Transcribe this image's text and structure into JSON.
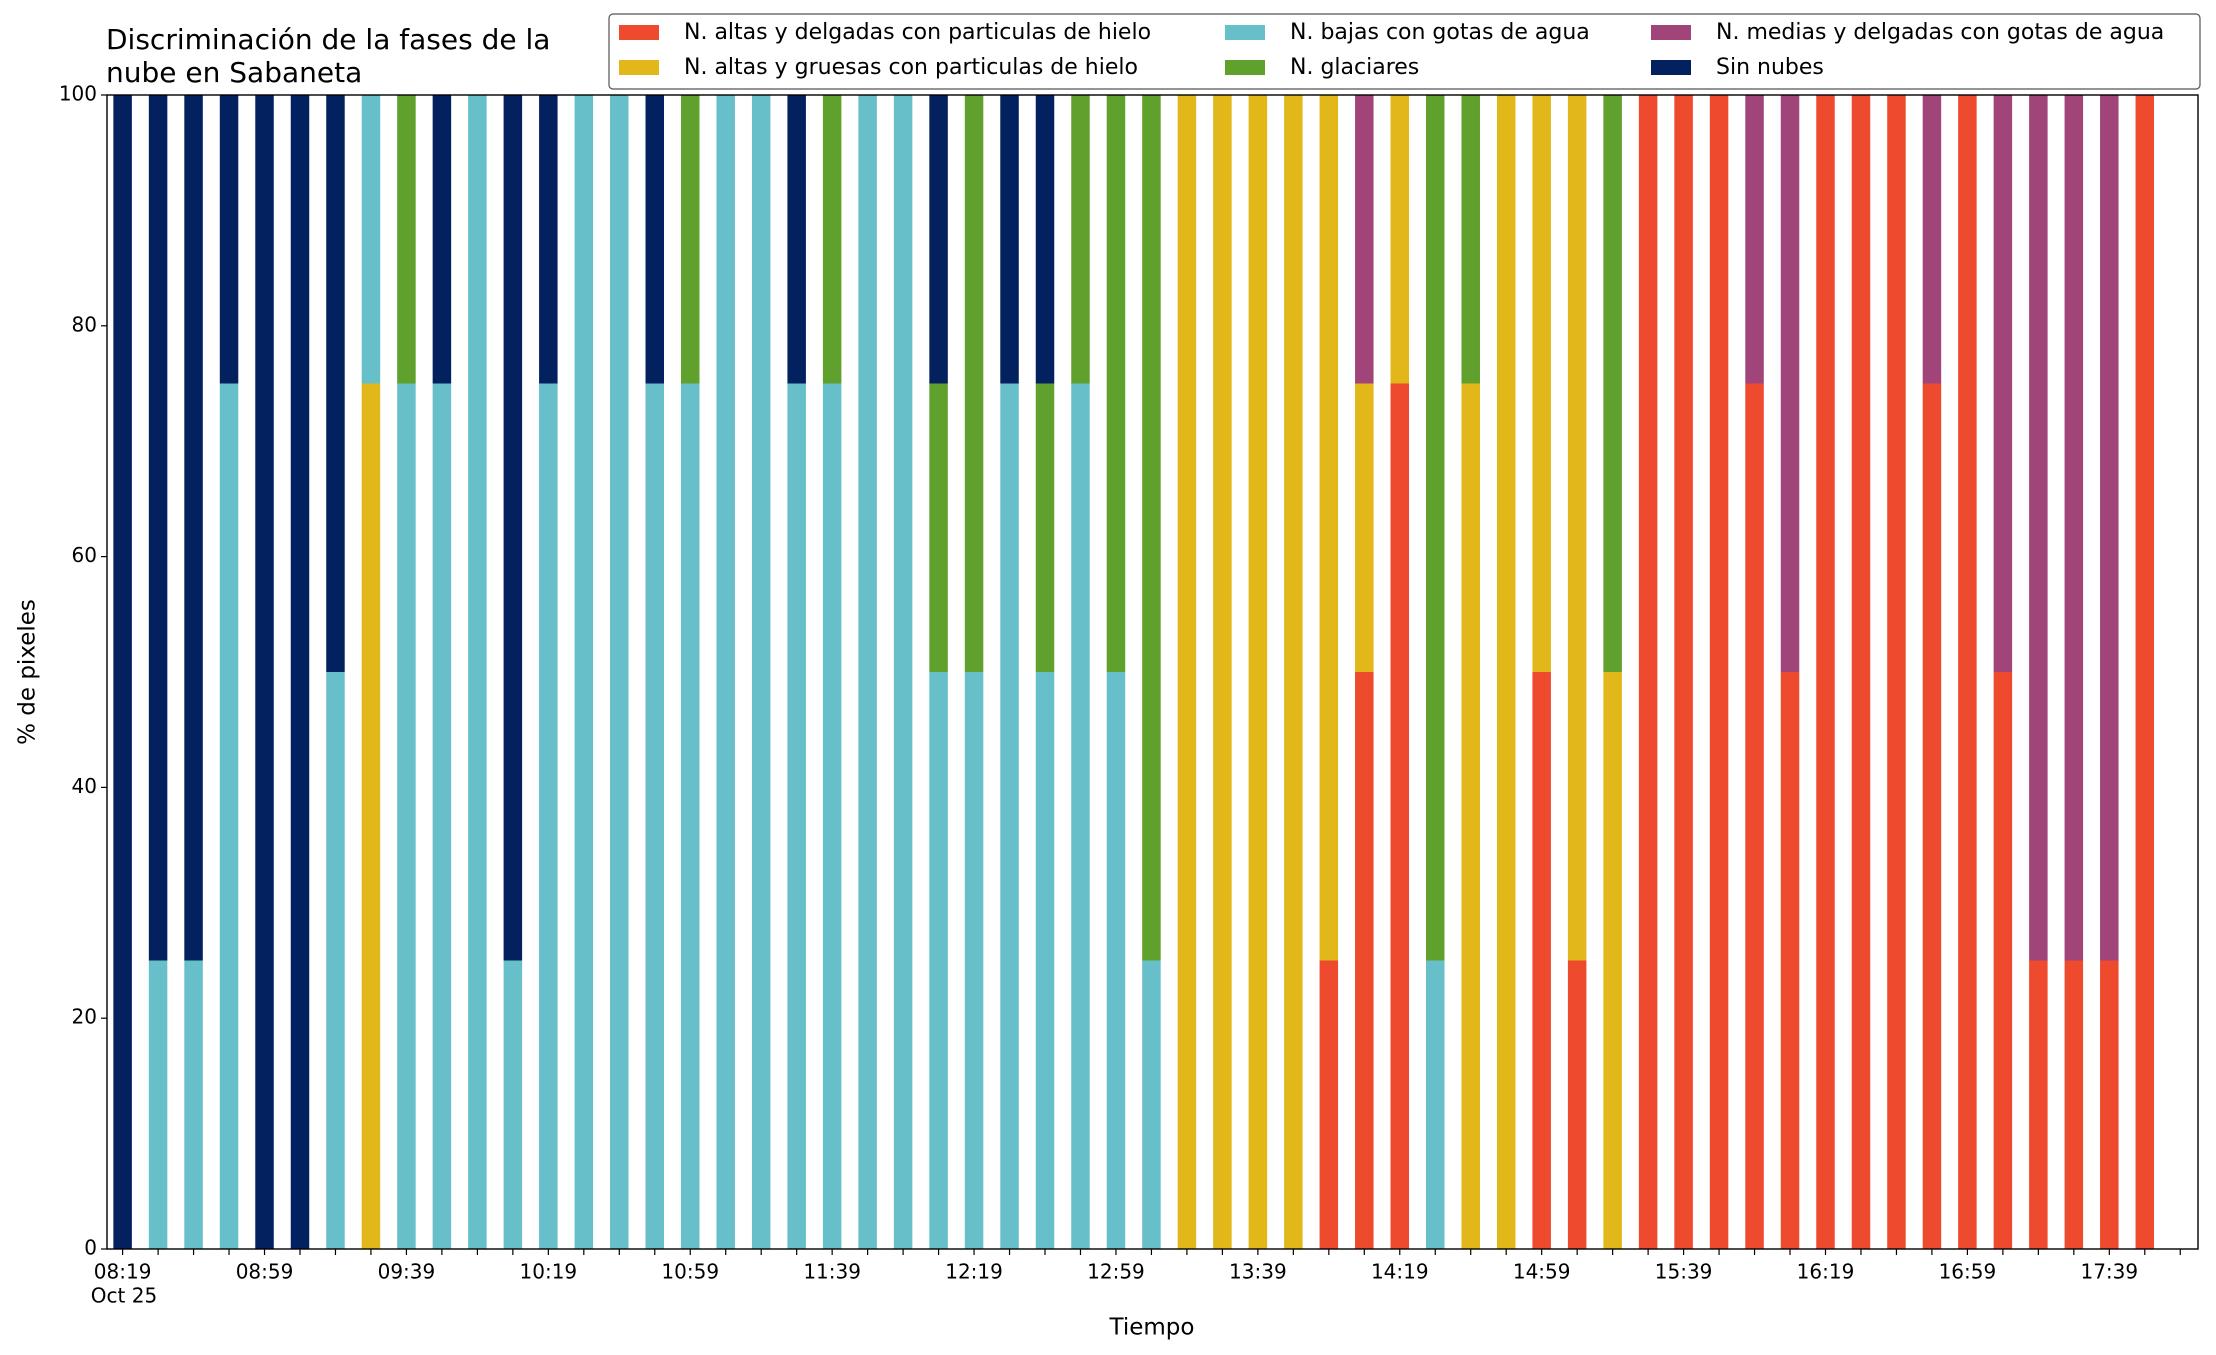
{
  "chart_data": {
    "type": "stacked_bar",
    "title": [
      "Discriminación de la fases de la",
      "nube en Sabaneta"
    ],
    "x_label": "Tiempo",
    "y_label": "% de pixeles",
    "x_date_label": "Oct 25",
    "categories": [
      "08:19",
      null,
      null,
      null,
      "08:59",
      null,
      null,
      null,
      "09:39",
      null,
      null,
      null,
      "10:19",
      null,
      null,
      null,
      "10:59",
      null,
      null,
      null,
      "11:39",
      null,
      null,
      null,
      "12:19",
      null,
      null,
      null,
      "12:59",
      null,
      null,
      null,
      "13:39",
      null,
      null,
      null,
      "14:19",
      null,
      null,
      null,
      "14:59",
      null,
      null,
      null,
      "15:39",
      null,
      null,
      null,
      "16:19",
      null,
      null,
      null,
      "16:59",
      null,
      null,
      null,
      "17:39",
      null
    ],
    "ylim": [
      0,
      100
    ],
    "yticks": [
      0,
      20,
      40,
      60,
      80,
      100
    ],
    "legend": "upper right",
    "series": [
      {
        "name": "N. altas y delgadas con particulas de hielo",
        "color": "#ee4a2d",
        "values": [
          0,
          0,
          0,
          0,
          0,
          0,
          0,
          0,
          0,
          0,
          0,
          0,
          0,
          0,
          0,
          0,
          0,
          0,
          0,
          0,
          0,
          0,
          0,
          0,
          0,
          0,
          0,
          0,
          0,
          0,
          0,
          0,
          0,
          0,
          25,
          50,
          75,
          0,
          0,
          0,
          50,
          25,
          0,
          100,
          100,
          100,
          75,
          50,
          100,
          100,
          100,
          75,
          100,
          50,
          25,
          25,
          25,
          100
        ]
      },
      {
        "name": "N. altas y gruesas con particulas de hielo",
        "color": "#e2b719",
        "values": [
          0,
          0,
          0,
          0,
          0,
          0,
          0,
          75,
          0,
          0,
          0,
          0,
          0,
          0,
          0,
          0,
          0,
          0,
          0,
          0,
          0,
          0,
          0,
          0,
          0,
          0,
          0,
          0,
          0,
          0,
          100,
          100,
          100,
          100,
          75,
          25,
          25,
          0,
          75,
          100,
          50,
          75,
          50,
          0,
          0,
          0,
          0,
          0,
          0,
          0,
          0,
          0,
          0,
          0,
          0,
          0,
          0,
          0
        ]
      },
      {
        "name": "N. bajas con gotas de agua",
        "color": "#67bfca",
        "values": [
          0,
          25,
          25,
          75,
          0,
          0,
          50,
          25,
          75,
          75,
          100,
          25,
          75,
          100,
          100,
          75,
          75,
          100,
          100,
          75,
          75,
          100,
          100,
          50,
          50,
          75,
          50,
          75,
          50,
          25,
          0,
          0,
          0,
          0,
          0,
          0,
          0,
          25,
          0,
          0,
          0,
          0,
          0,
          0,
          0,
          0,
          0,
          0,
          0,
          0,
          0,
          0,
          0,
          0,
          0,
          0,
          0,
          0
        ]
      },
      {
        "name": "N. glaciares",
        "color": "#5fa12c",
        "values": [
          0,
          0,
          0,
          0,
          0,
          0,
          0,
          0,
          25,
          0,
          0,
          0,
          0,
          0,
          0,
          0,
          25,
          0,
          0,
          0,
          25,
          0,
          0,
          25,
          50,
          0,
          25,
          25,
          50,
          75,
          0,
          0,
          0,
          0,
          0,
          0,
          0,
          75,
          25,
          0,
          0,
          0,
          50,
          0,
          0,
          0,
          0,
          0,
          0,
          0,
          0,
          0,
          0,
          0,
          0,
          0,
          0,
          0
        ]
      },
      {
        "name": "N. medias y delgadas con gotas de agua",
        "color": "#a0447a",
        "values": [
          0,
          0,
          0,
          0,
          0,
          0,
          0,
          0,
          0,
          0,
          0,
          0,
          0,
          0,
          0,
          0,
          0,
          0,
          0,
          0,
          0,
          0,
          0,
          0,
          0,
          0,
          0,
          0,
          0,
          0,
          0,
          0,
          0,
          0,
          0,
          25,
          0,
          0,
          0,
          0,
          0,
          0,
          0,
          0,
          0,
          0,
          25,
          50,
          0,
          0,
          0,
          25,
          0,
          50,
          75,
          75,
          75,
          0
        ]
      },
      {
        "name": "Sin nubes",
        "color": "#03215f",
        "values": [
          100,
          75,
          75,
          25,
          100,
          100,
          50,
          0,
          0,
          25,
          0,
          75,
          25,
          0,
          0,
          25,
          0,
          0,
          0,
          25,
          0,
          0,
          0,
          25,
          0,
          25,
          25,
          0,
          0,
          0,
          0,
          0,
          0,
          0,
          0,
          0,
          0,
          0,
          0,
          0,
          0,
          0,
          0,
          0,
          0,
          0,
          0,
          0,
          0,
          0,
          0,
          0,
          0,
          0,
          0,
          0,
          0,
          0
        ]
      }
    ]
  }
}
